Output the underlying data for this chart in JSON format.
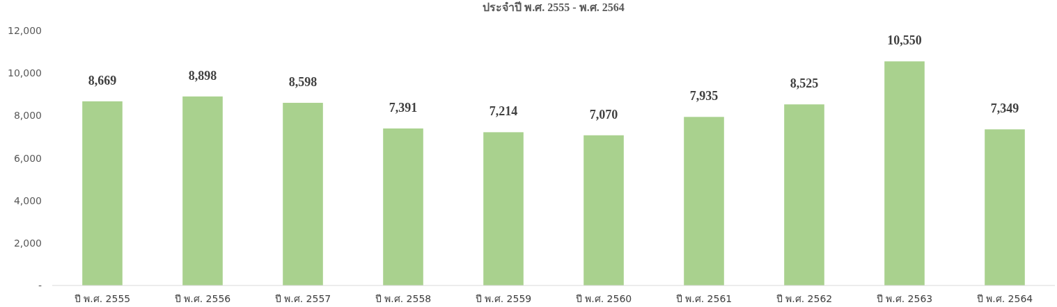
{
  "chart_data": {
    "type": "bar",
    "title": "ประจำปี พ.ศ. 2555 - พ.ศ. 2564",
    "categories": [
      "ปี พ.ศ. 2555",
      "ปี พ.ศ. 2556",
      "ปี พ.ศ. 2557",
      "ปี พ.ศ. 2558",
      "ปี พ.ศ. 2559",
      "ปี พ.ศ. 2560",
      "ปี พ.ศ. 2561",
      "ปี พ.ศ. 2562",
      "ปี พ.ศ. 2563",
      "ปี พ.ศ. 2564"
    ],
    "values": [
      8669,
      8898,
      8598,
      7391,
      7214,
      7070,
      7935,
      8525,
      10550,
      7349
    ],
    "color": "#a9d18e",
    "ylim": [
      0,
      12000
    ],
    "yticks": [
      {
        "value": 0,
        "label": "-"
      },
      {
        "value": 2000,
        "label": "2,000"
      },
      {
        "value": 4000,
        "label": "4,000"
      },
      {
        "value": 6000,
        "label": "6,000"
      },
      {
        "value": 8000,
        "label": "8,000"
      },
      {
        "value": 10000,
        "label": "10,000"
      },
      {
        "value": 12000,
        "label": "12,000"
      }
    ],
    "value_labels": [
      "8,669",
      "8,898",
      "8,598",
      "7,391",
      "7,214",
      "7,070",
      "7,935",
      "8,525",
      "10,550",
      "7,349"
    ],
    "grid": false
  }
}
